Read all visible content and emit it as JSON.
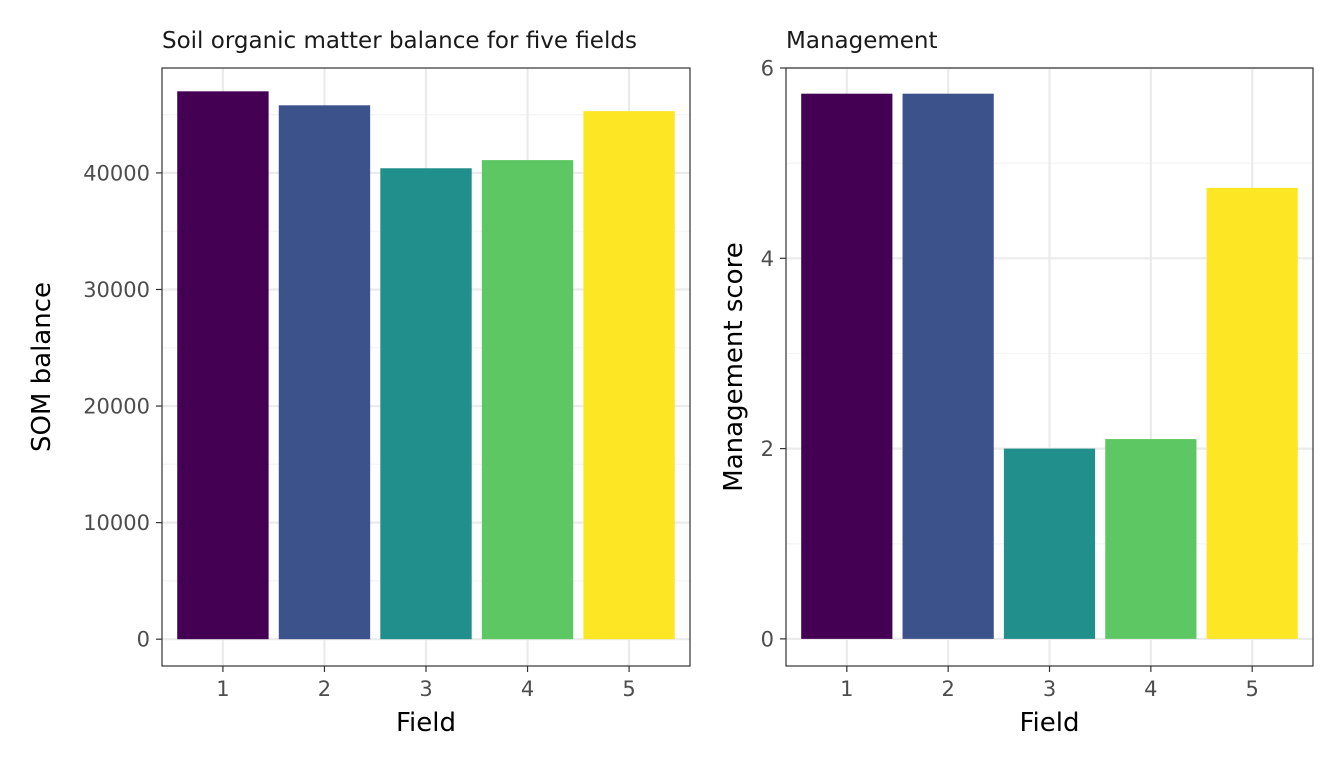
{
  "chart_data": [
    {
      "type": "bar",
      "title": "Soil organic matter balance for five fields",
      "xlabel": "Field",
      "ylabel": "SOM balance",
      "categories": [
        "1",
        "2",
        "3",
        "4",
        "5"
      ],
      "values": [
        47000,
        45800,
        40400,
        41100,
        45300
      ],
      "colors": [
        "#440154",
        "#3B528B",
        "#21908C",
        "#5DC863",
        "#FDE725"
      ],
      "ylim": [
        -2300,
        49000
      ],
      "yticks": [
        0,
        10000,
        20000,
        30000,
        40000
      ],
      "ytick_labels": [
        "0",
        "10000",
        "20000",
        "30000",
        "40000"
      ],
      "grid": true,
      "legend": false
    },
    {
      "type": "bar",
      "title": "Management",
      "xlabel": "Field",
      "ylabel": "Management score",
      "categories": [
        "1",
        "2",
        "3",
        "4",
        "5"
      ],
      "values": [
        5.73,
        5.73,
        2.0,
        2.1,
        4.74
      ],
      "colors": [
        "#440154",
        "#3B528B",
        "#21908C",
        "#5DC863",
        "#FDE725"
      ],
      "ylim": [
        -0.285,
        6.0
      ],
      "yticks": [
        0,
        2,
        4,
        6
      ],
      "ytick_labels": [
        "0",
        "2",
        "4",
        "6"
      ],
      "grid": true,
      "legend": false
    }
  ]
}
